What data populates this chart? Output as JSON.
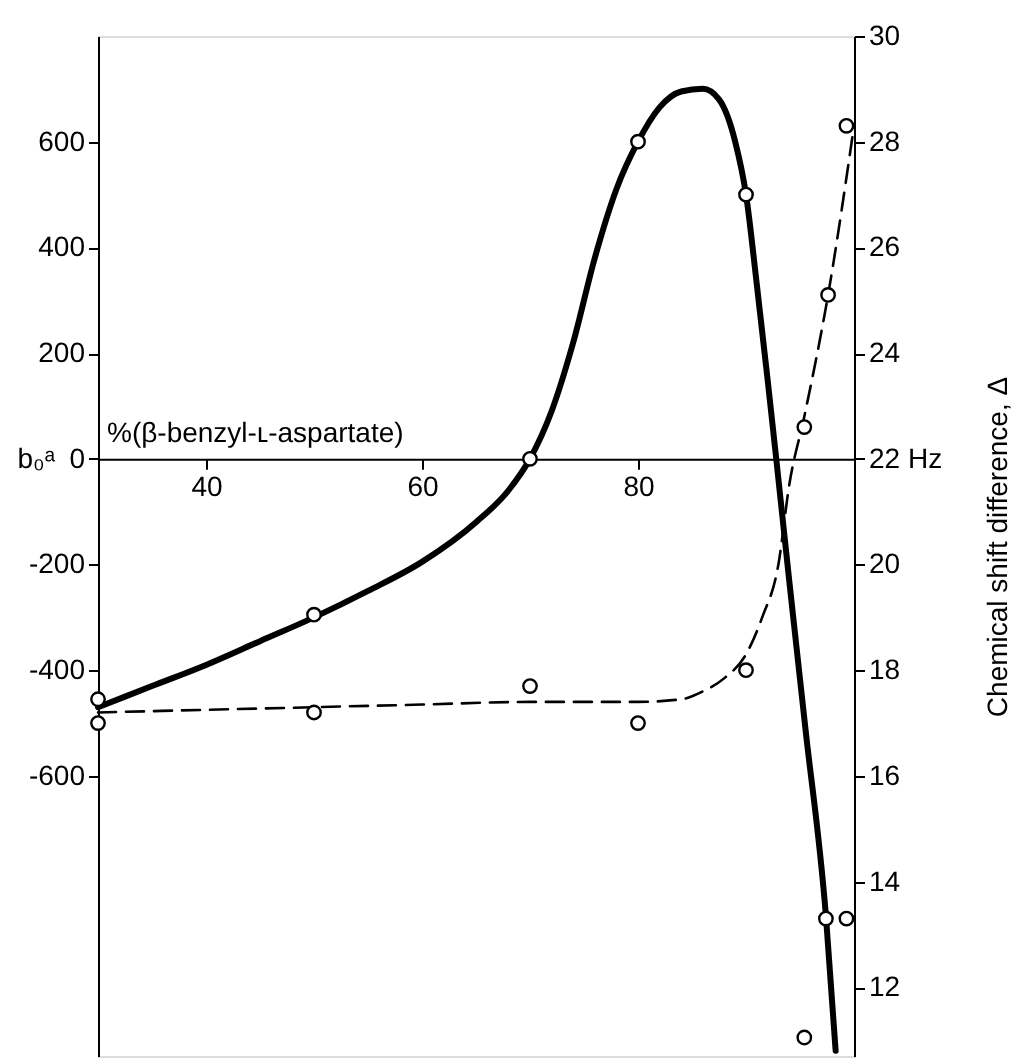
{
  "chart_data": {
    "type": "line",
    "xlabel": "%(β-benzyl-ʟ-aspartate)",
    "ylabel": "b₀ᵃ",
    "y2label": "Chemical shift difference, Δ",
    "xlim": [
      30,
      100
    ],
    "xticks": [
      40,
      60,
      80
    ],
    "ylim": [
      -1130,
      800
    ],
    "yticks": [
      -600,
      -400,
      -200,
      0,
      200,
      400,
      600
    ],
    "y2lim": [
      10.7,
      30
    ],
    "y2ticks": [
      12,
      14,
      16,
      18,
      20,
      {
        "value": 22,
        "label": "22 Hz"
      },
      24,
      26,
      28,
      30
    ],
    "grid": false,
    "series": [
      {
        "color": "#000000",
        "line_style": "solid",
        "x": [
          30,
          35,
          40,
          45,
          50,
          55,
          60,
          65,
          68,
          70,
          72,
          74,
          76,
          78,
          80,
          82,
          84,
          86,
          87.5,
          89,
          90,
          91,
          92,
          92.8,
          94,
          95.5,
          97.4,
          98.3
        ],
        "values": [
          -470,
          -430,
          -390,
          -345,
          -300,
          -250,
          -195,
          -120,
          -60,
          0,
          90,
          220,
          380,
          510,
          600,
          665,
          695,
          700,
          680,
          600,
          500,
          330,
          150,
          0,
          -230,
          -510,
          -865,
          -1120
        ]
      },
      {
        "type": "line",
        "color": "#000000",
        "line_style": "dashed",
        "axis": "y2",
        "x": [
          30,
          40,
          50,
          60,
          70,
          80,
          84,
          86,
          88,
          90,
          91.5,
          93,
          94,
          95.4,
          97.6,
          100
        ],
        "values": [
          17.2,
          17.25,
          17.3,
          17.35,
          17.4,
          17.4,
          17.45,
          17.6,
          17.85,
          18.3,
          19.0,
          20.0,
          21.5,
          22.8,
          25.1,
          28.3
        ]
      },
      {
        "type": "scatter",
        "color": "#000000",
        "marker": "circle",
        "x": [
          30,
          50,
          70,
          80,
          90,
          97.4,
          99.3,
          95.4
        ],
        "values": [
          -455,
          -295,
          0,
          600,
          500,
          -870,
          -870,
          -1095
        ]
      },
      {
        "type": "scatter",
        "color": "#000000",
        "marker": "circle",
        "axis": "y2",
        "x": [
          30,
          50,
          70,
          80,
          90,
          95.4,
          97.6,
          99.3
        ],
        "values": [
          17.0,
          17.2,
          17.7,
          17.0,
          18.0,
          22.6,
          25.1,
          28.3
        ]
      }
    ]
  }
}
